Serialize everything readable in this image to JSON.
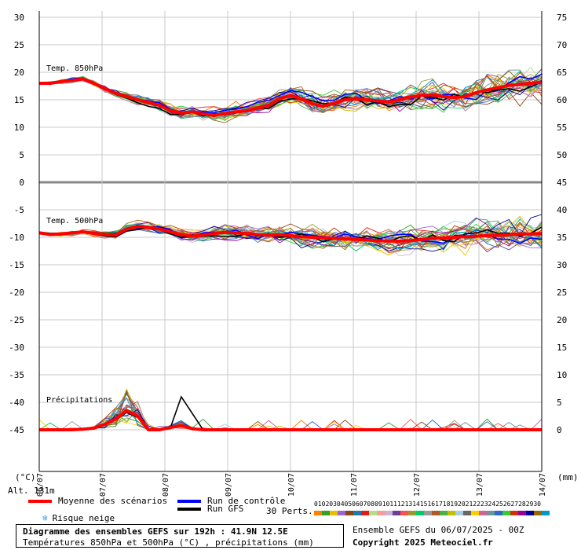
{
  "chart_data": {
    "type": "line",
    "title": "Diagramme des ensembles GEFS sur 192h : 41.9N 12.5E",
    "subtitle": "Températures 850hPa et 500hPa (°C) , précipitations (mm)",
    "x_tick_labels": [
      "06/07",
      "07/07",
      "08/07",
      "09/07",
      "10/07",
      "11/07",
      "12/07",
      "13/07",
      "14/07"
    ],
    "left_axis": {
      "label": "(°C)",
      "ticks": [
        "30",
        "25",
        "20",
        "15",
        "10",
        "5",
        "0",
        "-5",
        "-10",
        "-15",
        "-20",
        "-25",
        "-30",
        "-35",
        "-40",
        "-45"
      ],
      "ylim": [
        -45,
        30
      ]
    },
    "right_axis": {
      "label": "(mm)",
      "ticks": [
        "75",
        "70",
        "65",
        "60",
        "55",
        "50",
        "45",
        "40",
        "35",
        "30",
        "25",
        "20",
        "15",
        "10",
        "5",
        "0"
      ]
    },
    "panels": [
      {
        "label": "Temp. 850hPa",
        "mean": [
          18,
          18,
          18.3,
          18.5,
          18.8,
          18,
          17,
          16.2,
          15.6,
          15,
          14.5,
          14,
          13,
          12.6,
          12.8,
          12.4,
          12.2,
          12.5,
          12.8,
          13,
          13.5,
          14,
          15.2,
          15.8,
          15.2,
          14.3,
          13.8,
          14.4,
          15,
          15.2,
          15,
          14.8,
          14.6,
          15,
          15.5,
          15.8,
          15.9,
          15.6,
          15.4,
          15.6,
          16.3,
          16.8,
          17.2,
          17.6,
          17.8,
          18,
          18.2
        ]
      },
      {
        "label": "Temp. 500hPa",
        "mean": [
          -9.2,
          -9.5,
          -9.4,
          -9.2,
          -9,
          -9.3,
          -9.5,
          -9.6,
          -8.5,
          -8,
          -8.2,
          -8.5,
          -9,
          -9.5,
          -9.8,
          -9.6,
          -9.3,
          -9.1,
          -9.2,
          -9.3,
          -9.5,
          -9.6,
          -9.5,
          -9.7,
          -9.9,
          -10,
          -10.1,
          -10.2,
          -10.3,
          -10.4,
          -10.5,
          -10.6,
          -10.7,
          -10.7,
          -10.6,
          -10.4,
          -10.2,
          -10.1,
          -10,
          -9.9,
          -9.8,
          -9.7,
          -9.6,
          -9.5,
          -9.4,
          -9.4,
          -9.3
        ]
      },
      {
        "label": "Précipitations",
        "mean": [
          0,
          0,
          0,
          0,
          0.1,
          0.3,
          1,
          2,
          3.5,
          2.5,
          0,
          0,
          0.4,
          0.8,
          0.2,
          0,
          0,
          0,
          0,
          0,
          0,
          0,
          0,
          0,
          0,
          0,
          0,
          0,
          0,
          0,
          0,
          0,
          0,
          0,
          0,
          0,
          0,
          0,
          0,
          0,
          0,
          0,
          0,
          0,
          0,
          0,
          0
        ]
      }
    ],
    "members": 30,
    "grid": true
  },
  "page": {
    "left_unit": "(°C)",
    "right_unit": "(mm)",
    "alt_label": "Alt. 131m"
  },
  "legend": {
    "mean": "Moyenne des scénarios",
    "control": "Run de contrôle",
    "gfs": "Run GFS",
    "snow": "Risque neige",
    "perts": "30 Perts.",
    "colors": {
      "mean": "#ff0000",
      "control": "#0000ff",
      "gfs": "#000000",
      "snow_icon": "#3aa0e0"
    }
  },
  "pert_numbers": [
    "01",
    "02",
    "03",
    "04",
    "05",
    "06",
    "07",
    "08",
    "09",
    "10",
    "11",
    "12",
    "13",
    "14",
    "15",
    "16",
    "17",
    "18",
    "19",
    "20",
    "21",
    "22",
    "23",
    "24",
    "25",
    "26",
    "27",
    "28",
    "29",
    "30"
  ],
  "pert_colors": [
    "#ff7f00",
    "#33a02c",
    "#e8c000",
    "#9966cc",
    "#8b4513",
    "#1f78b4",
    "#e31a1c",
    "#b2df8a",
    "#fb9a99",
    "#cab2d6",
    "#6a3d9a",
    "#ff5050",
    "#999933",
    "#00cc66",
    "#999999",
    "#b15928",
    "#4daf4a",
    "#c0c000",
    "#a6cee3",
    "#666666",
    "#ffcc00",
    "#cc6699",
    "#669999",
    "#3366cc",
    "#33cc33",
    "#cc3300",
    "#990099",
    "#000099",
    "#996600",
    "#0099cc"
  ],
  "footer": {
    "title": "Diagramme des ensembles GEFS sur 192h : 41.9N 12.5E",
    "subtitle": "Températures 850hPa et 500hPa (°C) , précipitations (mm)",
    "run": "Ensemble GEFS du 06/07/2025 - 00Z",
    "copyright": "Copyright 2025 Meteociel.fr"
  }
}
